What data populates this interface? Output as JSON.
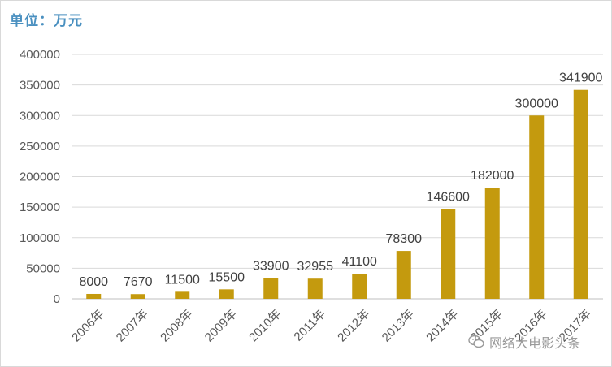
{
  "unit_label": "单位：万元",
  "watermark": {
    "text": "网络大电影头条",
    "icon": "chat-bubble-icon"
  },
  "colors": {
    "bar": "#C49A0E",
    "grid": "#d9d9d9",
    "axis": "#bfbfbf"
  },
  "chart_data": {
    "type": "bar",
    "categories": [
      "2006年",
      "2007年",
      "2008年",
      "2009年",
      "2010年",
      "2011年",
      "2012年",
      "2013年",
      "2014年",
      "2015年",
      "2016年",
      "2017年"
    ],
    "values": [
      8000,
      7670,
      11500,
      15500,
      33900,
      32955,
      41100,
      78300,
      146600,
      182000,
      300000,
      341900
    ],
    "data_labels": [
      "8000",
      "7670",
      "11500",
      "15500",
      "33900",
      "32955",
      "41100",
      "78300",
      "146600",
      "182000",
      "300000",
      "341900"
    ],
    "y_ticks": [
      "0",
      "50000",
      "100000",
      "150000",
      "200000",
      "250000",
      "300000",
      "350000",
      "400000"
    ],
    "ylim": [
      0,
      400000
    ],
    "title": "",
    "xlabel": "",
    "ylabel": "",
    "grid": true,
    "legend": "none"
  }
}
